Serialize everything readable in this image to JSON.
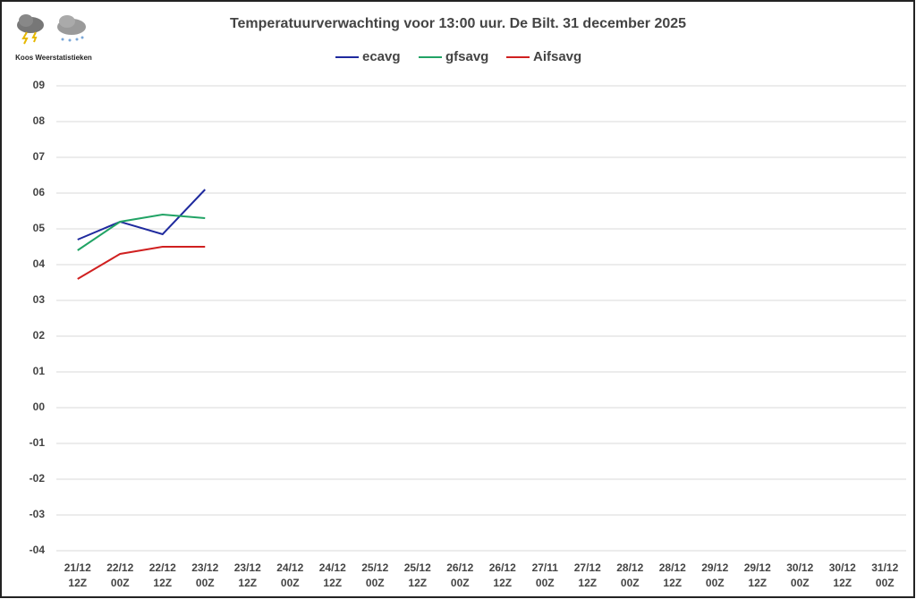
{
  "chart_data": {
    "type": "line",
    "title": "Temperatuurverwachting voor 13:00 uur. De Bilt. 31 december 2025",
    "logo_text": "Koos Weerstatistieken",
    "categories": [
      "21/12 12Z",
      "22/12 00Z",
      "22/12 12Z",
      "23/12 00Z",
      "23/12 12Z",
      "24/12 00Z",
      "24/12 12Z",
      "25/12 00Z",
      "25/12 12Z",
      "26/12 00Z",
      "26/12 12Z",
      "27/11 00Z",
      "27/12 12Z",
      "28/12 00Z",
      "28/12 12Z",
      "29/12 00Z",
      "29/12 12Z",
      "30/12 00Z",
      "30/12 12Z",
      "31/12 00Z"
    ],
    "series": [
      {
        "name": "ecavg",
        "color": "#1f2a9e",
        "values": [
          4.7,
          5.2,
          4.85,
          6.1,
          null,
          null,
          null,
          null,
          null,
          null,
          null,
          null,
          null,
          null,
          null,
          null,
          null,
          null,
          null,
          null
        ]
      },
      {
        "name": "gfsavg",
        "color": "#21a365",
        "values": [
          4.4,
          5.2,
          5.4,
          5.3,
          null,
          null,
          null,
          null,
          null,
          null,
          null,
          null,
          null,
          null,
          null,
          null,
          null,
          null,
          null,
          null
        ]
      },
      {
        "name": "Aifsavg",
        "color": "#d02020",
        "values": [
          3.6,
          4.3,
          4.5,
          4.5,
          null,
          null,
          null,
          null,
          null,
          null,
          null,
          null,
          null,
          null,
          null,
          null,
          null,
          null,
          null,
          null
        ]
      }
    ],
    "ylim": [
      -4,
      9
    ],
    "yticks": [
      {
        "value": 9,
        "label": "09"
      },
      {
        "value": 8,
        "label": "08"
      },
      {
        "value": 7,
        "label": "07"
      },
      {
        "value": 6,
        "label": "06"
      },
      {
        "value": 5,
        "label": "05"
      },
      {
        "value": 4,
        "label": "04"
      },
      {
        "value": 3,
        "label": "03"
      },
      {
        "value": 2,
        "label": "02"
      },
      {
        "value": 1,
        "label": "01"
      },
      {
        "value": 0,
        "label": "00"
      },
      {
        "value": -1,
        "label": "-01"
      },
      {
        "value": -2,
        "label": "-02"
      },
      {
        "value": -3,
        "label": "-03"
      },
      {
        "value": -4,
        "label": "-04"
      }
    ],
    "grid": true,
    "legend": "top"
  }
}
